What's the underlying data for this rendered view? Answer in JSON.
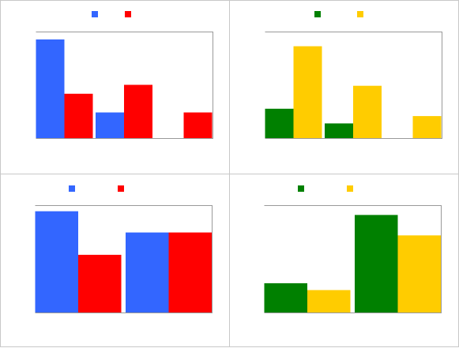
{
  "chart_data": [
    {
      "type": "bar",
      "categories": [
        "",
        "",
        ""
      ],
      "series": [
        {
          "color": "#3366ff",
          "values": [
            100,
            26,
            0
          ]
        },
        {
          "color": "#ff0000",
          "values": [
            45,
            54,
            26
          ]
        }
      ],
      "ylim": [
        0,
        108
      ],
      "grid": false,
      "legend": "top-center"
    },
    {
      "type": "bar",
      "categories": [
        "",
        "",
        ""
      ],
      "series": [
        {
          "color": "#008000",
          "values": [
            32,
            16,
            0
          ]
        },
        {
          "color": "#ffcc00",
          "values": [
            100,
            57,
            24
          ]
        }
      ],
      "ylim": [
        0,
        116
      ],
      "grid": false,
      "legend": "top-center"
    },
    {
      "type": "bar",
      "categories": [
        "",
        ""
      ],
      "series": [
        {
          "color": "#3366ff",
          "values": [
            100,
            79
          ]
        },
        {
          "color": "#ff0000",
          "values": [
            57,
            79
          ]
        }
      ],
      "ylim": [
        0,
        106
      ],
      "grid": false,
      "legend": "top-center"
    },
    {
      "type": "bar",
      "categories": [
        "",
        ""
      ],
      "series": [
        {
          "color": "#008000",
          "values": [
            30,
            100
          ]
        },
        {
          "color": "#ffcc00",
          "values": [
            23,
            79
          ]
        }
      ],
      "ylim": [
        0,
        110
      ],
      "grid": false,
      "legend": "top-center"
    }
  ]
}
